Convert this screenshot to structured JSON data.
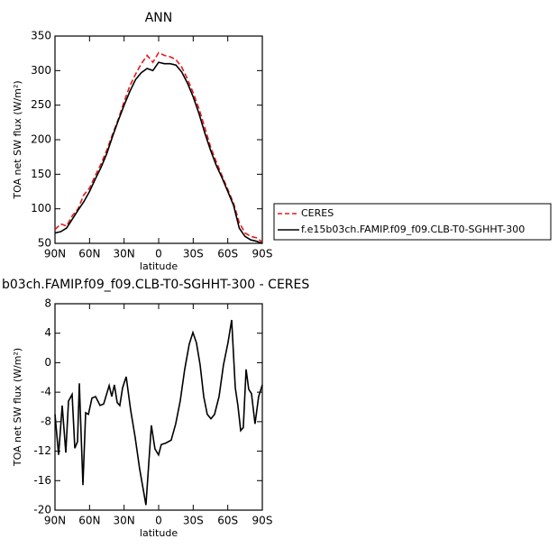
{
  "chart_data": [
    {
      "type": "line",
      "title": "ANN",
      "x_label": "latitude",
      "y_label": "TOA net SW flux (W/m²)",
      "xlim": [
        90,
        -90
      ],
      "xticks": [
        {
          "value": 90,
          "label": "90N"
        },
        {
          "value": 60,
          "label": "60N"
        },
        {
          "value": 30,
          "label": "30N"
        },
        0,
        {
          "value": -30,
          "label": "30S"
        },
        {
          "value": -60,
          "label": "60S"
        },
        {
          "value": -90,
          "label": "90S"
        }
      ],
      "ylim": [
        50,
        350
      ],
      "yticks": [
        50,
        100,
        150,
        200,
        250,
        300,
        350
      ],
      "legend": "right",
      "x": [
        90,
        85,
        80,
        75,
        70,
        65,
        60,
        55,
        50,
        45,
        40,
        35,
        30,
        25,
        20,
        15,
        10,
        5,
        0,
        -5,
        -10,
        -15,
        -20,
        -25,
        -30,
        -35,
        -40,
        -45,
        -50,
        -55,
        -60,
        -65,
        -70,
        -75,
        -80,
        -85,
        -90
      ],
      "series": [
        {
          "name": "CERES",
          "color": "#e41a1c",
          "line_style": "dashed",
          "values": [
            70,
            78,
            75,
            90,
            100,
            120,
            130,
            148,
            165,
            185,
            208,
            230,
            255,
            278,
            295,
            310,
            322,
            312,
            326,
            322,
            320,
            316,
            305,
            288,
            268,
            245,
            218,
            190,
            168,
            148,
            128,
            108,
            80,
            65,
            60,
            58,
            52
          ]
        },
        {
          "name": "f.e15b03ch.FAMIP.f09_f09.CLB-T0-SGHHT-300",
          "color": "#000000",
          "line_style": "solid",
          "values": [
            65,
            67,
            72,
            85,
            98,
            110,
            125,
            143,
            160,
            180,
            205,
            228,
            250,
            270,
            287,
            297,
            303,
            300,
            312,
            310,
            310,
            308,
            298,
            282,
            262,
            238,
            210,
            185,
            163,
            145,
            125,
            105,
            72,
            60,
            55,
            53,
            50
          ]
        }
      ]
    },
    {
      "type": "line",
      "title": "b03ch.FAMIP.f09_f09.CLB-T0-SGHHT-300 - CERES",
      "x_label": "latitude",
      "y_label": "TOA net SW flux (W/m²)",
      "xlim": [
        90,
        -90
      ],
      "xticks": [
        {
          "value": 90,
          "label": "90N"
        },
        {
          "value": 60,
          "label": "60N"
        },
        {
          "value": 30,
          "label": "30N"
        },
        0,
        {
          "value": -30,
          "label": "30S"
        },
        {
          "value": -60,
          "label": "60S"
        },
        {
          "value": -90,
          "label": "90S"
        }
      ],
      "ylim": [
        -20,
        8
      ],
      "yticks": [
        -20,
        -16,
        -12,
        -8,
        -4,
        0,
        4,
        8
      ],
      "x": [
        90,
        86.9,
        83.7,
        80.6,
        78.3,
        75.1,
        72.8,
        70.4,
        68.9,
        65.7,
        63.4,
        61.0,
        57.9,
        54.8,
        50.9,
        47.7,
        43.0,
        40.7,
        38.4,
        36.0,
        33.7,
        31.3,
        28.2,
        24.3,
        20.4,
        16.5,
        11.0,
        6.3,
        3.2,
        0.1,
        -2.3,
        -6.2,
        -10.9,
        -14.8,
        -18.7,
        -22.6,
        -26.5,
        -29.7,
        -32.8,
        -36.0,
        -39.1,
        -42.2,
        -45.4,
        -48.5,
        -52.4,
        -56.3,
        -60.2,
        -63.4,
        -66.5,
        -68.8,
        -71.2,
        -73.5,
        -75.9,
        -78.2,
        -80.6,
        -83.7,
        -86.8,
        -90
      ],
      "series": [
        {
          "color": "#000000",
          "line_style": "solid",
          "values": [
            -7.0,
            -12.5,
            -5.8,
            -12.2,
            -5.2,
            -4.3,
            -11.6,
            -10.7,
            -2.8,
            -16.6,
            -6.8,
            -7.0,
            -4.8,
            -4.6,
            -5.8,
            -5.6,
            -3.1,
            -4.6,
            -3.0,
            -5.4,
            -5.8,
            -3.4,
            -1.9,
            -6.4,
            -10.1,
            -14.4,
            -19.3,
            -8.5,
            -11.7,
            -12.5,
            -11.1,
            -10.9,
            -10.5,
            -8.3,
            -5.2,
            -0.9,
            2.5,
            4.1,
            2.7,
            -0.3,
            -4.6,
            -7.0,
            -7.6,
            -7.0,
            -4.6,
            -0.3,
            2.7,
            5.8,
            -3.4,
            -5.8,
            -9.2,
            -8.8,
            -0.9,
            -3.6,
            -4.2,
            -8.3,
            -4.6,
            -3.0
          ]
        }
      ]
    }
  ]
}
